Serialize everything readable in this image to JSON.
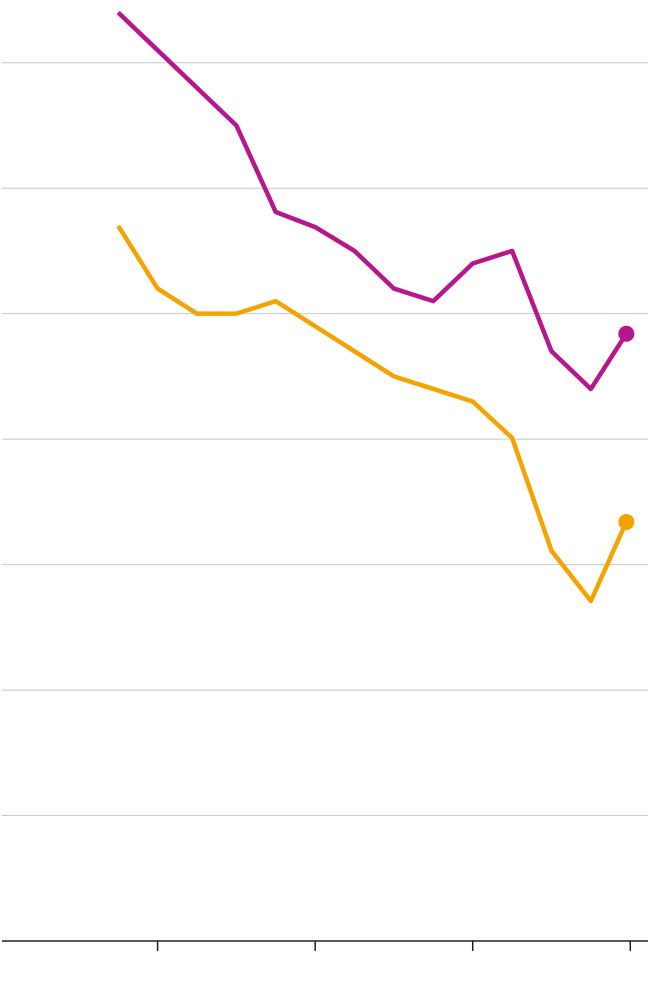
{
  "chart_data": {
    "type": "line",
    "x": [
      0,
      1,
      2,
      3,
      4,
      5,
      6,
      7,
      8,
      9,
      10,
      11,
      12,
      12.9
    ],
    "series": [
      {
        "color": "#b8168c",
        "values": [
          7.4,
          7.1,
          6.8,
          6.5,
          5.81,
          5.69,
          5.5,
          5.2,
          5.1,
          5.4,
          5.5,
          4.7,
          4.4,
          4.84
        ]
      },
      {
        "color": "#f5a300",
        "values": [
          5.7,
          5.2,
          5.0,
          5.0,
          5.1,
          4.9,
          4.7,
          4.5,
          4.4,
          4.3,
          4.01,
          3.11,
          2.71,
          3.34
        ]
      }
    ],
    "xlim": [
      -2.95,
      13.45
    ],
    "xticks": [
      1,
      5,
      9,
      13
    ],
    "ylim": [
      0,
      7.5
    ],
    "yticks": [
      1,
      2,
      3,
      4,
      5,
      6,
      7
    ],
    "grid": true
  }
}
